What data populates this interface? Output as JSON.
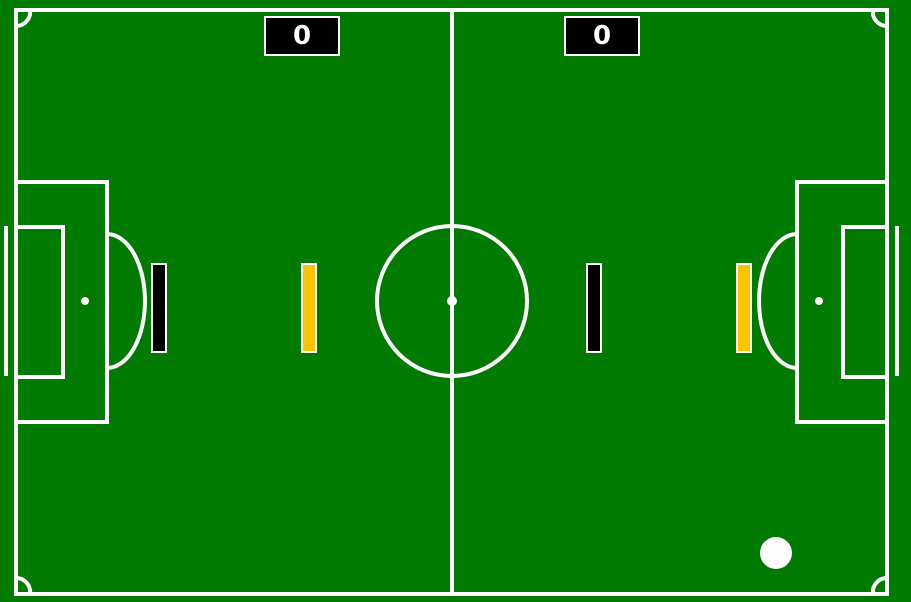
{
  "colors": {
    "pitch": "#017a01",
    "lines": "#ffffff",
    "team_black": "#000000",
    "team_yellow": "#ffc300",
    "ball": "#ffffff",
    "scoreboard_bg": "#000000",
    "scoreboard_text": "#ffffff"
  },
  "scoreboard": {
    "left_score": "0",
    "right_score": "0"
  },
  "paddles": [
    {
      "team": "black",
      "name": "left-black-paddle"
    },
    {
      "team": "yellow",
      "name": "left-yellow-paddle"
    },
    {
      "team": "black",
      "name": "right-black-paddle"
    },
    {
      "team": "yellow",
      "name": "right-yellow-paddle"
    }
  ]
}
